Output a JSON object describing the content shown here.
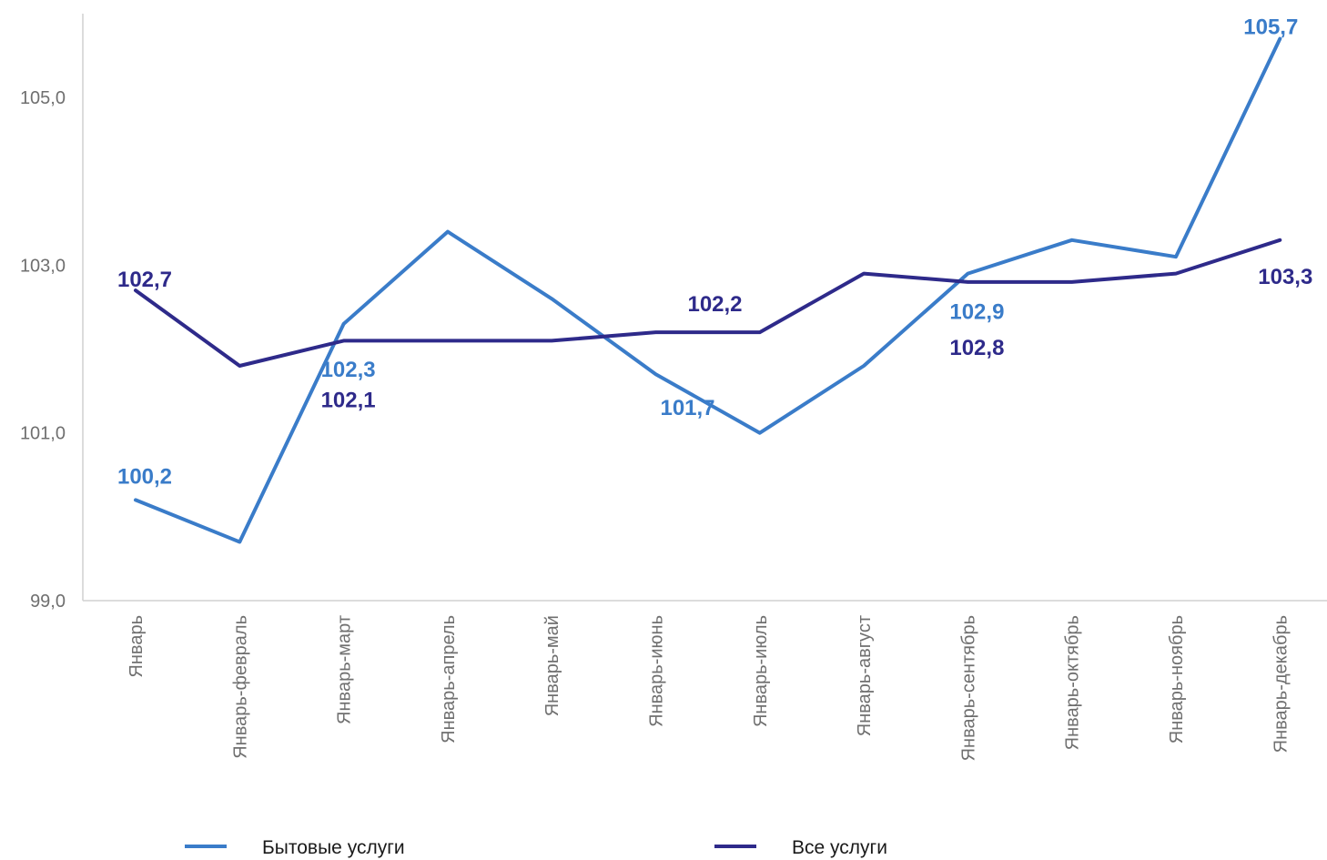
{
  "chart_data": {
    "type": "line",
    "categories": [
      "Январь",
      "Январь-февраль",
      "Январь-март",
      "Январь-апрель",
      "Январь-май",
      "Январь-июнь",
      "Январь-июль",
      "Январь-август",
      "Январь-сентябрь",
      "Январь-октябрь",
      "Январь-ноябрь",
      "Январь-декабрь"
    ],
    "ylim": [
      99.0,
      106.0
    ],
    "yticks": [
      "99,0",
      "101,0",
      "103,0",
      "105,0"
    ],
    "ytick_values": [
      99.0,
      101.0,
      103.0,
      105.0
    ],
    "grid": false,
    "legend_position": "bottom",
    "series": [
      {
        "name": "Бытовые услуги",
        "color": "#3a7cc9",
        "values": [
          100.2,
          99.7,
          102.3,
          103.4,
          102.6,
          101.7,
          101.0,
          101.8,
          102.9,
          103.3,
          103.1,
          105.7
        ],
        "labels": [
          {
            "index": 0,
            "text": "100,2"
          },
          {
            "index": 2,
            "text": "102,3"
          },
          {
            "index": 5,
            "text": "101,7"
          },
          {
            "index": 8,
            "text": "102,9"
          },
          {
            "index": 11,
            "text": "105,7"
          }
        ]
      },
      {
        "name": "Все услуги",
        "color": "#2e2a8a",
        "values": [
          102.7,
          101.8,
          102.1,
          102.1,
          102.1,
          102.2,
          102.2,
          102.9,
          102.8,
          102.8,
          102.9,
          103.3
        ],
        "labels": [
          {
            "index": 0,
            "text": "102,7"
          },
          {
            "index": 2,
            "text": "102,1"
          },
          {
            "index": 5,
            "text": "102,2"
          },
          {
            "index": 8,
            "text": "102,8"
          },
          {
            "index": 11,
            "text": "103,3"
          }
        ]
      }
    ]
  }
}
